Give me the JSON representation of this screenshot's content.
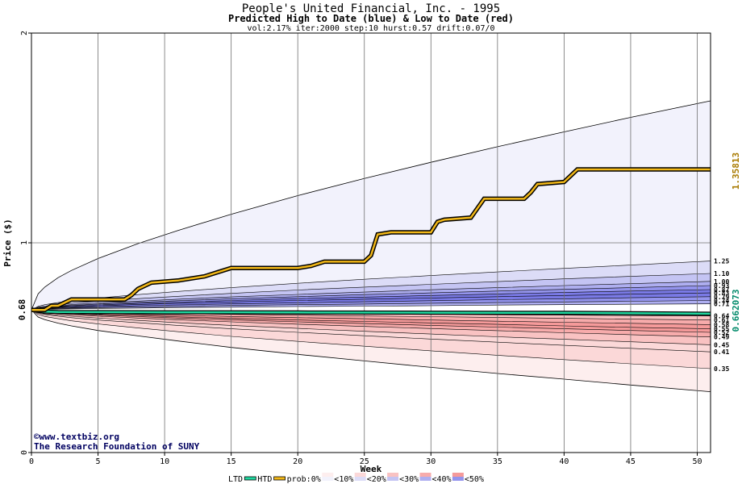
{
  "chart_data": {
    "type": "area",
    "title": "People's United Financial, Inc. - 1995",
    "subtitle": "Predicted High to Date (blue) &  Low to Date (red)",
    "params": "vol:2.17% iter:2000 step:10 hurst:0.57 drift:0.07/0",
    "xlabel": "Week",
    "ylabel": "Price ($)",
    "xlim": [
      0,
      51
    ],
    "ylim": [
      0,
      2
    ],
    "xticks": [
      "0",
      "5",
      "10",
      "15",
      "20",
      "25",
      "30",
      "35",
      "40",
      "45",
      "50"
    ],
    "yticks": [
      "0",
      "1",
      "2"
    ],
    "start_label": "0.68",
    "start_value": 0.68,
    "hi_value_label": "1.35813",
    "lo_value_label": "0.662073",
    "blue_band_colors": [
      "#f2f2fc",
      "#dcdcf7",
      "#c4c4f3",
      "#aeaef0",
      "#9494ed",
      "#7a7ae6"
    ],
    "red_band_colors": [
      "#fdeeee",
      "#fbd8d8",
      "#f9c2c2",
      "#f7abab",
      "#f59a9a"
    ],
    "quantiles": {
      "x": [
        0,
        0.5,
        1,
        2,
        3,
        5,
        8,
        11,
        15,
        20,
        25,
        30,
        35,
        40,
        45,
        51
      ],
      "lines": [
        {
          "label": "",
          "values": [
            0.68,
            0.757,
            0.789,
            0.834,
            0.868,
            0.925,
            0.996,
            1.059,
            1.136,
            1.225,
            1.307,
            1.384,
            1.458,
            1.529,
            1.598,
            1.677
          ]
        },
        {
          "label": "1.25",
          "values": [
            0.68,
            0.697,
            0.705,
            0.715,
            0.723,
            0.736,
            0.753,
            0.768,
            0.786,
            0.807,
            0.826,
            0.844,
            0.861,
            0.878,
            0.894,
            0.913
          ]
        },
        {
          "label": "1.10",
          "values": [
            0.68,
            0.693,
            0.698,
            0.706,
            0.712,
            0.722,
            0.734,
            0.745,
            0.759,
            0.775,
            0.789,
            0.802,
            0.815,
            0.828,
            0.84,
            0.854
          ]
        },
        {
          "label": "1.00",
          "values": [
            0.68,
            0.69,
            0.694,
            0.7,
            0.705,
            0.713,
            0.722,
            0.731,
            0.742,
            0.754,
            0.765,
            0.776,
            0.786,
            0.796,
            0.805,
            0.816
          ]
        },
        {
          "label": "0.93",
          "values": [
            0.68,
            0.688,
            0.692,
            0.697,
            0.701,
            0.708,
            0.716,
            0.724,
            0.733,
            0.743,
            0.753,
            0.761,
            0.77,
            0.778,
            0.786,
            0.796
          ]
        },
        {
          "label": "0.87",
          "values": [
            0.68,
            0.687,
            0.69,
            0.694,
            0.698,
            0.704,
            0.711,
            0.717,
            0.725,
            0.734,
            0.741,
            0.749,
            0.756,
            0.763,
            0.77,
            0.777
          ]
        },
        {
          "label": "0.83",
          "values": [
            0.68,
            0.686,
            0.688,
            0.692,
            0.695,
            0.7,
            0.706,
            0.711,
            0.718,
            0.725,
            0.731,
            0.737,
            0.743,
            0.749,
            0.755,
            0.761
          ]
        },
        {
          "label": "0.79",
          "values": [
            0.68,
            0.684,
            0.686,
            0.689,
            0.691,
            0.695,
            0.7,
            0.704,
            0.709,
            0.714,
            0.719,
            0.724,
            0.729,
            0.733,
            0.738,
            0.743
          ]
        },
        {
          "label": "0.74",
          "values": [
            0.68,
            0.683,
            0.684,
            0.686,
            0.688,
            0.691,
            0.694,
            0.697,
            0.701,
            0.705,
            0.708,
            0.712,
            0.715,
            0.718,
            0.721,
            0.725
          ]
        },
        {
          "label": "0.71",
          "values": [
            0.68,
            0.682,
            0.683,
            0.684,
            0.685,
            0.687,
            0.689,
            0.691,
            0.693,
            0.696,
            0.698,
            0.7,
            0.703,
            0.705,
            0.707,
            0.709
          ]
        },
        {
          "label": "0.64",
          "values": [
            0.68,
            0.678,
            0.677,
            0.676,
            0.675,
            0.673,
            0.671,
            0.669,
            0.667,
            0.664,
            0.662,
            0.66,
            0.657,
            0.655,
            0.653,
            0.651
          ]
        },
        {
          "label": "0.61",
          "values": [
            0.68,
            0.677,
            0.676,
            0.674,
            0.672,
            0.669,
            0.666,
            0.663,
            0.659,
            0.655,
            0.651,
            0.648,
            0.644,
            0.64,
            0.636,
            0.632
          ]
        },
        {
          "label": "0.58",
          "values": [
            0.68,
            0.675,
            0.673,
            0.67,
            0.668,
            0.664,
            0.659,
            0.655,
            0.649,
            0.643,
            0.638,
            0.632,
            0.626,
            0.621,
            0.616,
            0.61
          ]
        },
        {
          "label": "0.55",
          "values": [
            0.68,
            0.673,
            0.671,
            0.667,
            0.664,
            0.659,
            0.653,
            0.647,
            0.64,
            0.632,
            0.625,
            0.618,
            0.611,
            0.604,
            0.597,
            0.59
          ]
        },
        {
          "label": "0.52",
          "values": [
            0.68,
            0.672,
            0.669,
            0.665,
            0.661,
            0.655,
            0.648,
            0.641,
            0.633,
            0.623,
            0.615,
            0.606,
            0.598,
            0.59,
            0.582,
            0.573
          ]
        },
        {
          "label": "0.49",
          "values": [
            0.68,
            0.67,
            0.667,
            0.661,
            0.657,
            0.65,
            0.641,
            0.633,
            0.623,
            0.612,
            0.601,
            0.591,
            0.581,
            0.571,
            0.562,
            0.551
          ]
        },
        {
          "label": "0.45",
          "values": [
            0.68,
            0.667,
            0.662,
            0.655,
            0.65,
            0.641,
            0.63,
            0.619,
            0.606,
            0.592,
            0.578,
            0.565,
            0.552,
            0.54,
            0.528,
            0.514
          ]
        },
        {
          "label": "0.41",
          "values": [
            0.68,
            0.664,
            0.658,
            0.65,
            0.643,
            0.632,
            0.619,
            0.606,
            0.59,
            0.573,
            0.557,
            0.541,
            0.526,
            0.511,
            0.497,
            0.48
          ]
        },
        {
          "label": "0.35",
          "values": [
            0.68,
            0.658,
            0.649,
            0.638,
            0.628,
            0.613,
            0.594,
            0.576,
            0.554,
            0.53,
            0.507,
            0.485,
            0.464,
            0.443,
            0.423,
            0.4
          ]
        },
        {
          "label": "",
          "values": [
            0.68,
            0.646,
            0.634,
            0.617,
            0.604,
            0.582,
            0.556,
            0.532,
            0.501,
            0.468,
            0.437,
            0.406,
            0.377,
            0.35,
            0.322,
            0.29
          ]
        }
      ]
    },
    "high_to_date": {
      "x": [
        0,
        1,
        1.5,
        2,
        3,
        7,
        7.5,
        8,
        9,
        11,
        13,
        14,
        15,
        20,
        21,
        22,
        25,
        25.5,
        26,
        27,
        30,
        30.5,
        31,
        33,
        34,
        37,
        37.5,
        38,
        40,
        41,
        51
      ],
      "values": [
        0.68,
        0.68,
        0.7,
        0.7,
        0.73,
        0.73,
        0.75,
        0.78,
        0.81,
        0.82,
        0.84,
        0.86,
        0.88,
        0.88,
        0.89,
        0.91,
        0.91,
        0.94,
        1.04,
        1.05,
        1.05,
        1.1,
        1.11,
        1.12,
        1.21,
        1.21,
        1.24,
        1.28,
        1.29,
        1.35,
        1.35
      ]
    },
    "low_to_date": {
      "x": [
        0,
        1,
        2,
        10,
        20,
        30,
        40,
        51
      ],
      "values": [
        0.68,
        0.672,
        0.67,
        0.669,
        0.668,
        0.667,
        0.666,
        0.662
      ]
    },
    "legend": {
      "items": [
        "LTD",
        "HTD",
        "prob:0%",
        "<10%",
        "<20%",
        "<30%",
        "<40%",
        "<50%"
      ]
    },
    "credit_lines": [
      "©www.textbiz.org",
      "The Research Foundation of SUNY"
    ]
  }
}
